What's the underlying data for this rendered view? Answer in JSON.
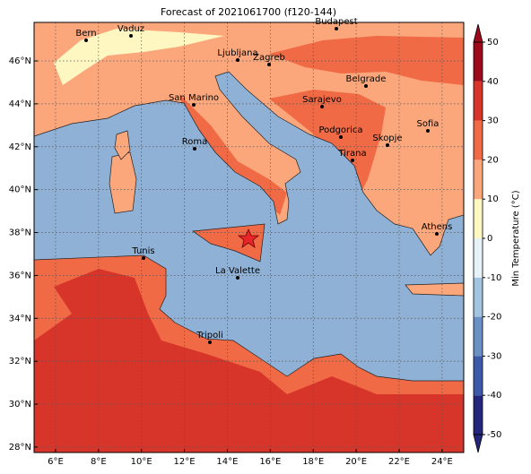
{
  "title": "Forecast of 2021061700 (f120-144)",
  "map": {
    "xticks": [
      {
        "value": 6,
        "label": "6°E"
      },
      {
        "value": 8,
        "label": "8°E"
      },
      {
        "value": 10,
        "label": "10°E"
      },
      {
        "value": 12,
        "label": "12°E"
      },
      {
        "value": 14,
        "label": "14°E"
      },
      {
        "value": 16,
        "label": "16°E"
      },
      {
        "value": 18,
        "label": "18°E"
      },
      {
        "value": 20,
        "label": "20°E"
      },
      {
        "value": 22,
        "label": "22°E"
      },
      {
        "value": 24,
        "label": "24°E"
      }
    ],
    "yticks": [
      {
        "value": 28,
        "label": "28°N"
      },
      {
        "value": 30,
        "label": "30°N"
      },
      {
        "value": 32,
        "label": "32°N"
      },
      {
        "value": 34,
        "label": "34°N"
      },
      {
        "value": 36,
        "label": "36°N"
      },
      {
        "value": 38,
        "label": "38°N"
      },
      {
        "value": 40,
        "label": "40°N"
      },
      {
        "value": 42,
        "label": "42°N"
      },
      {
        "value": 44,
        "label": "44°N"
      },
      {
        "value": 46,
        "label": "46°N"
      }
    ],
    "cities": [
      "Bern",
      "Vaduz",
      "Budapest",
      "Ljubljana",
      "Zagreb",
      "Belgrade",
      "San Marino",
      "Sarajevo",
      "Sofia",
      "Podgorica",
      "Skopje",
      "Roma",
      "Tirana",
      "Athens",
      "Tunis",
      "La Valette",
      "Tripoli"
    ]
  },
  "colorbar": {
    "label": "Min Temperature (°C)",
    "ticks": [
      -50,
      -40,
      -30,
      -20,
      -10,
      0,
      10,
      20,
      30,
      40,
      50
    ],
    "colors": [
      "#23267a",
      "#3c5aa8",
      "#6b90c4",
      "#a3c4e0",
      "#e6f2f7",
      "#fff7c2",
      "#fca77b",
      "#ef6a45",
      "#d8352a",
      "#9d0a1c"
    ]
  }
}
